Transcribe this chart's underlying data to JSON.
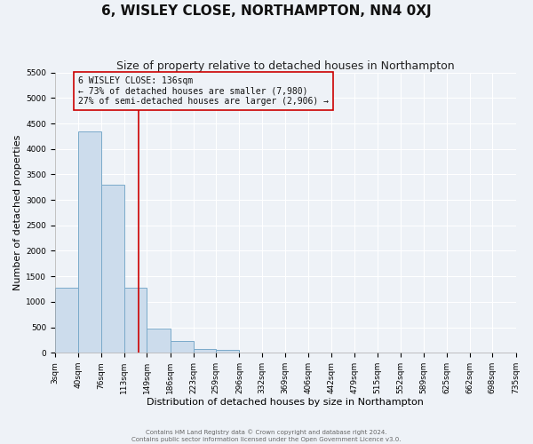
{
  "title": "6, WISLEY CLOSE, NORTHAMPTON, NN4 0XJ",
  "subtitle": "Size of property relative to detached houses in Northampton",
  "xlabel": "Distribution of detached houses by size in Northampton",
  "ylabel": "Number of detached properties",
  "bin_edges": [
    3,
    40,
    76,
    113,
    149,
    186,
    223,
    259,
    296,
    332,
    369,
    406,
    442,
    479,
    515,
    552,
    589,
    625,
    662,
    698,
    735
  ],
  "bar_heights": [
    1270,
    4340,
    3300,
    1270,
    480,
    230,
    70,
    50,
    0,
    0,
    0,
    0,
    0,
    0,
    0,
    0,
    0,
    0,
    0,
    0
  ],
  "bar_color": "#ccdcec",
  "bar_edge_color": "#7aaaca",
  "property_line_x": 136,
  "property_line_color": "#cc0000",
  "annotation_line1": "6 WISLEY CLOSE: 136sqm",
  "annotation_line2": "← 73% of detached houses are smaller (7,980)",
  "annotation_line3": "27% of semi-detached houses are larger (2,906) →",
  "annotation_box_color": "#cc0000",
  "ylim_max": 5500,
  "yticks": [
    0,
    500,
    1000,
    1500,
    2000,
    2500,
    3000,
    3500,
    4000,
    4500,
    5000,
    5500
  ],
  "tick_labels": [
    "3sqm",
    "40sqm",
    "76sqm",
    "113sqm",
    "149sqm",
    "186sqm",
    "223sqm",
    "259sqm",
    "296sqm",
    "332sqm",
    "369sqm",
    "406sqm",
    "442sqm",
    "479sqm",
    "515sqm",
    "552sqm",
    "589sqm",
    "625sqm",
    "662sqm",
    "698sqm",
    "735sqm"
  ],
  "footer_line1": "Contains HM Land Registry data © Crown copyright and database right 2024.",
  "footer_line2": "Contains public sector information licensed under the Open Government Licence v3.0.",
  "background_color": "#eef2f7",
  "grid_color": "#ffffff",
  "title_fontsize": 11,
  "subtitle_fontsize": 9,
  "axis_label_fontsize": 8,
  "tick_fontsize": 6.5,
  "annotation_fontsize": 7,
  "footer_fontsize": 5
}
